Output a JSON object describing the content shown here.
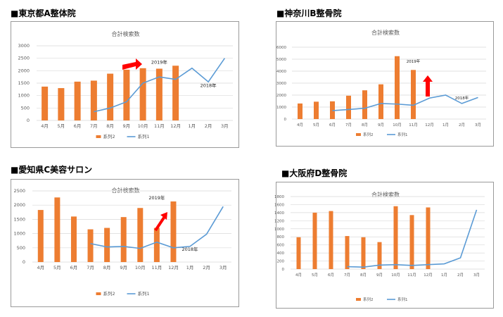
{
  "colors": {
    "bar": "#ED7D31",
    "line": "#5B9BD5",
    "arrow": "#FF0000",
    "grid": "#D9D9D9"
  },
  "panels": [
    {
      "heading": "■東京都A整体院"
    },
    {
      "heading": "■神奈川B整骨院"
    },
    {
      "heading": "■愛知県C美容サロン"
    },
    {
      "heading": "■大阪府D整骨院"
    }
  ],
  "chart_data": [
    {
      "type": "bar",
      "title": "合計検索数",
      "categories": [
        "4月",
        "5月",
        "6月",
        "7月",
        "8月",
        "9月",
        "10月",
        "11月",
        "12月",
        "1月",
        "2月",
        "3月"
      ],
      "ylim": [
        0,
        3000
      ],
      "yticks": [
        0,
        500,
        1000,
        1500,
        2000,
        2500,
        3000
      ],
      "grid": true,
      "legend": "bottom",
      "series": [
        {
          "name": "系列2",
          "kind": "bar",
          "values": [
            1360,
            1300,
            1560,
            1600,
            1880,
            2040,
            2100,
            2080,
            2200,
            null,
            null,
            null
          ]
        },
        {
          "name": "系列1",
          "kind": "line",
          "values": [
            null,
            null,
            null,
            350,
            500,
            750,
            1500,
            1750,
            1650,
            2100,
            1550,
            2500
          ]
        }
      ],
      "annotations": [
        {
          "text": "2019年",
          "x": "11月",
          "y": 2280
        },
        {
          "text": "2018年",
          "x": "2月",
          "y": 1350
        }
      ]
    },
    {
      "type": "bar",
      "title": "合計検索数",
      "categories": [
        "4月",
        "5月",
        "6月",
        "7月",
        "8月",
        "9月",
        "10月",
        "11月",
        "12月",
        "1月",
        "2月",
        "3月"
      ],
      "ylim": [
        0,
        6000
      ],
      "yticks": [
        0,
        1000,
        2000,
        3000,
        4000,
        5000,
        6000
      ],
      "grid": true,
      "legend": "bottom",
      "series": [
        {
          "name": "系列2",
          "kind": "bar",
          "values": [
            1300,
            1450,
            1480,
            1950,
            2400,
            2900,
            5250,
            4100,
            null,
            null,
            null,
            null
          ]
        },
        {
          "name": "系列1",
          "kind": "line",
          "values": [
            null,
            null,
            700,
            800,
            900,
            1300,
            1250,
            1150,
            1750,
            2000,
            1300,
            1800
          ]
        }
      ],
      "annotations": [
        {
          "text": "2019年",
          "x": "11月",
          "y": 4700
        },
        {
          "text": "2018年",
          "x": "2月",
          "y": 1650
        }
      ]
    },
    {
      "type": "bar",
      "title": "合計検索数",
      "categories": [
        "4月",
        "5月",
        "6月",
        "7月",
        "8月",
        "9月",
        "10月",
        "11月",
        "12月",
        "1月",
        "2月",
        "3月"
      ],
      "ylim": [
        0,
        2500
      ],
      "yticks": [
        0,
        500,
        1000,
        1500,
        2000,
        2500
      ],
      "grid": true,
      "legend": "bottom",
      "series": [
        {
          "name": "系列2",
          "kind": "bar",
          "values": [
            1830,
            2270,
            1600,
            1150,
            1200,
            1580,
            1900,
            1200,
            2130,
            null,
            null,
            null
          ]
        },
        {
          "name": "系列1",
          "kind": "line",
          "values": [
            null,
            null,
            null,
            650,
            530,
            550,
            480,
            700,
            500,
            550,
            980,
            1950
          ]
        }
      ],
      "annotations": [
        {
          "text": "2019年",
          "x": "11月",
          "y": 2200
        },
        {
          "text": "2018年",
          "x": "1月",
          "y": 400
        }
      ]
    },
    {
      "type": "bar",
      "title": "合計検索数",
      "categories": [
        "4月",
        "5月",
        "6月",
        "7月",
        "8月",
        "9月",
        "10月",
        "11月",
        "12月",
        "1月",
        "2月",
        "3月"
      ],
      "ylim": [
        0,
        1800
      ],
      "yticks": [
        0,
        200,
        400,
        600,
        800,
        1000,
        1200,
        1400,
        1600,
        1800
      ],
      "grid": true,
      "legend": "bottom",
      "series": [
        {
          "name": "系列2",
          "kind": "bar",
          "values": [
            790,
            1400,
            1440,
            820,
            790,
            670,
            1560,
            1340,
            1530,
            null,
            null,
            null
          ]
        },
        {
          "name": "系列1",
          "kind": "line",
          "values": [
            null,
            null,
            null,
            60,
            50,
            100,
            110,
            90,
            110,
            130,
            280,
            1470
          ]
        }
      ],
      "annotations": []
    }
  ]
}
